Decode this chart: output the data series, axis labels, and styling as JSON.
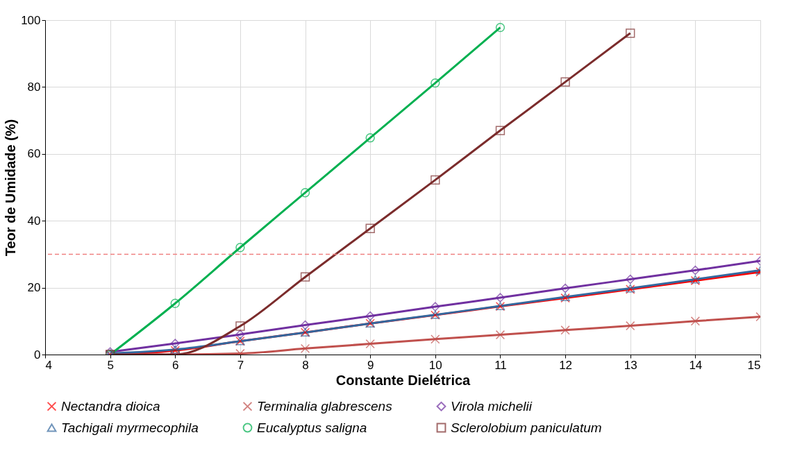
{
  "chart_data": {
    "type": "line",
    "xlabel": "Constante Dielétrica",
    "ylabel": "Teor de Umidade (%)",
    "x": [
      5,
      6,
      7,
      8,
      9,
      10,
      11,
      12,
      13,
      14,
      15
    ],
    "xlim": [
      4,
      15
    ],
    "xticks": [
      4,
      5,
      6,
      7,
      8,
      9,
      10,
      11,
      12,
      13,
      14,
      15
    ],
    "ylim": [
      0,
      100
    ],
    "yticks": [
      0,
      20,
      40,
      60,
      80,
      100
    ],
    "grid": true,
    "legend": "bottom",
    "line_style": "solid",
    "ref_lines": [
      {
        "axis": "y",
        "value": 30,
        "color": "#f08080",
        "line_style": "dashed"
      }
    ],
    "series": [
      {
        "name": "Nectandra dioica",
        "color": "#ff0000",
        "marker": "cross",
        "values": [
          0,
          1.2,
          4,
          6.6,
          9.3,
          11.8,
          14.4,
          16.9,
          19.5,
          22.1,
          24.7
        ]
      },
      {
        "name": "Terminalia glabrescens",
        "color": "#c0504d",
        "marker": "cross",
        "values": [
          0,
          0,
          0.3,
          1.8,
          3.2,
          4.6,
          5.9,
          7.3,
          8.6,
          10,
          11.3
        ]
      },
      {
        "name": "Virola michelii",
        "color": "#7030a0",
        "marker": "diamond",
        "values": [
          0.8,
          3.3,
          6,
          8.8,
          11.5,
          14.3,
          17,
          19.8,
          22.5,
          25.2,
          28
        ]
      },
      {
        "name": "Tachigali myrmecophila",
        "color": "#34689e",
        "marker": "triangle",
        "values": [
          0.3,
          1.5,
          4,
          6.6,
          9.3,
          11.9,
          14.5,
          17.2,
          19.8,
          22.5,
          25.2
        ]
      },
      {
        "name": "Eucalyptus saligna",
        "color": "#00b050",
        "marker": "circle",
        "values": [
          0,
          15.3,
          32,
          48.4,
          64.8,
          81.2,
          97.8,
          null,
          null,
          null,
          null
        ]
      },
      {
        "name": "Sclerolobium paniculatum",
        "color": "#7b2c2c",
        "marker": "square",
        "values": [
          0,
          0,
          8.5,
          23.2,
          37.7,
          52.2,
          67,
          81.5,
          96.1,
          null,
          null
        ]
      }
    ]
  }
}
